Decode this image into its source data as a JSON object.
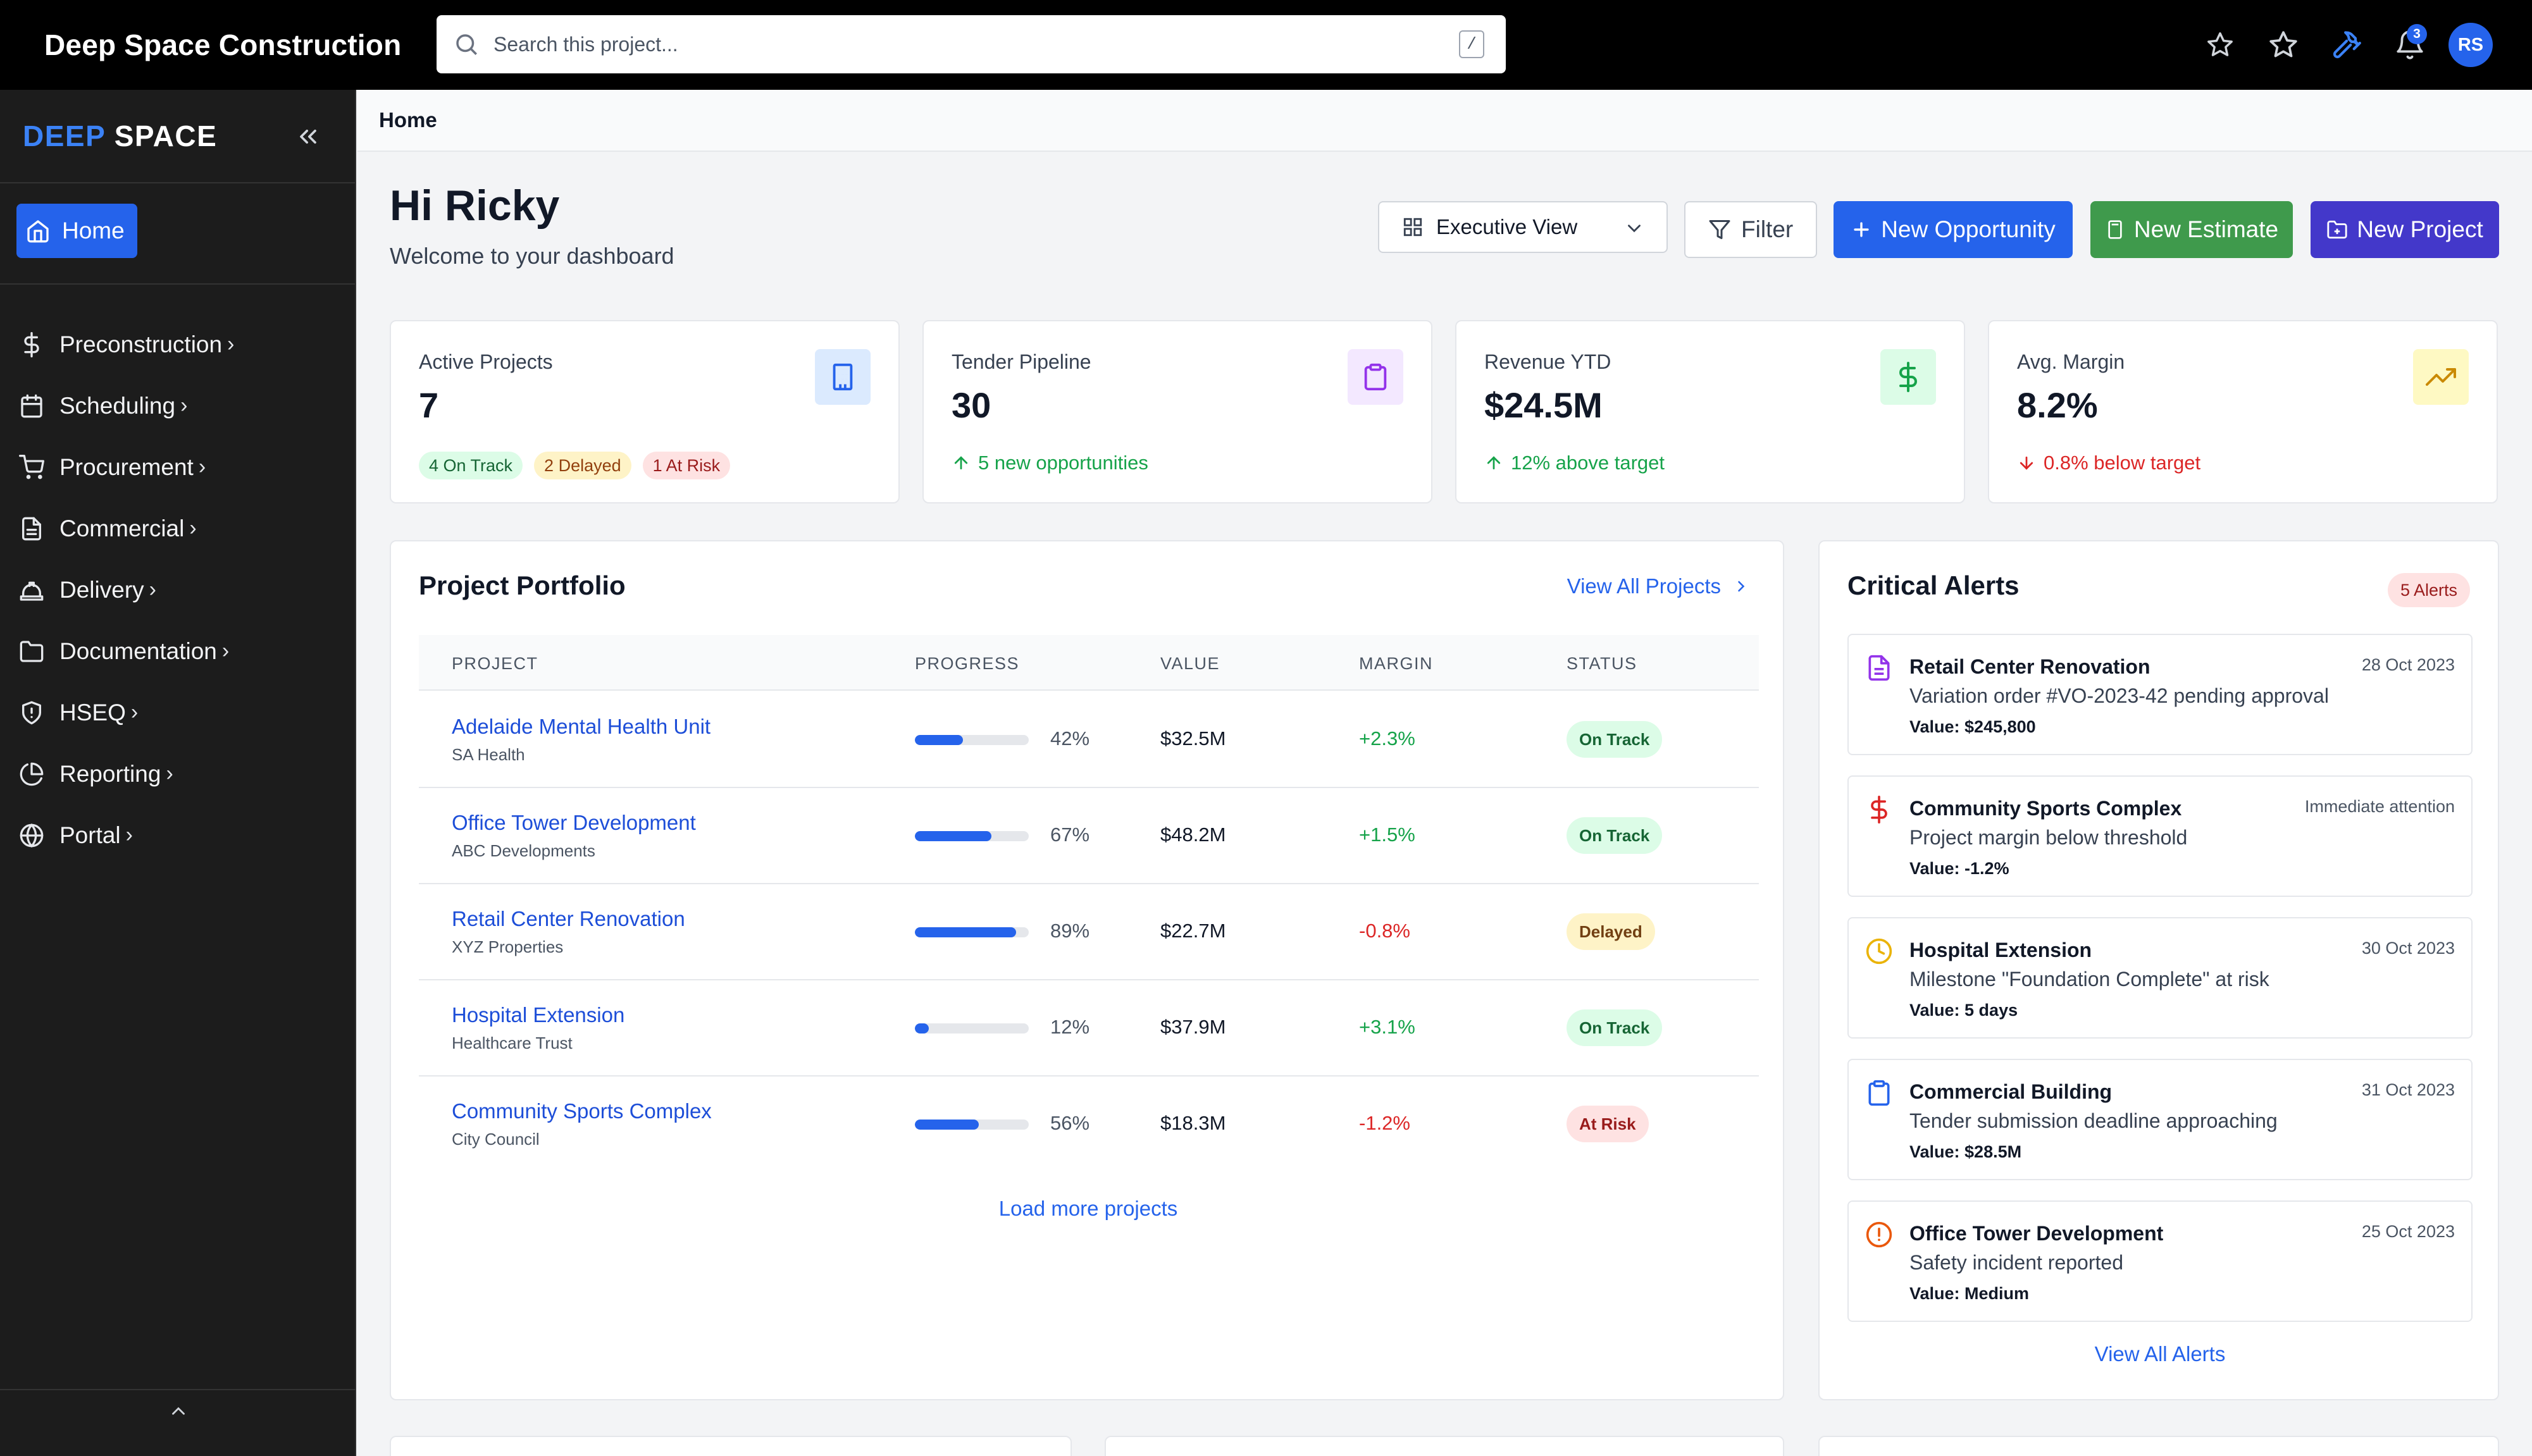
{
  "topbar": {
    "app_title": "Deep Space Construction",
    "search_placeholder": "Search this project...",
    "search_shortcut": "/",
    "notification_count": "3",
    "avatar_initials": "RS"
  },
  "sidebar": {
    "brand_deep": "DEEP",
    "brand_space": "SPACE",
    "home_label": "Home",
    "items": [
      {
        "label": "Preconstruction",
        "icon": "dollar-icon"
      },
      {
        "label": "Scheduling",
        "icon": "calendar-icon"
      },
      {
        "label": "Procurement",
        "icon": "cart-icon"
      },
      {
        "label": "Commercial",
        "icon": "document-icon"
      },
      {
        "label": "Delivery",
        "icon": "hardhat-icon"
      },
      {
        "label": "Documentation",
        "icon": "folder-icon"
      },
      {
        "label": "HSEQ",
        "icon": "shield-icon"
      },
      {
        "label": "Reporting",
        "icon": "pie-chart-icon"
      },
      {
        "label": "Portal",
        "icon": "globe-icon"
      }
    ],
    "chevron": "›"
  },
  "breadcrumb": "Home",
  "header": {
    "greeting": "Hi Ricky",
    "subtitle": "Welcome to your dashboard",
    "view_select": "Executive View",
    "filter_label": "Filter",
    "new_opportunity": "New Opportunity",
    "new_estimate": "New Estimate",
    "new_project": "New Project"
  },
  "stats": [
    {
      "label": "Active Projects",
      "value": "7",
      "chips": [
        "4 On Track",
        "2 Delayed",
        "1 At Risk"
      ]
    },
    {
      "label": "Tender Pipeline",
      "value": "30",
      "foot": "5 new opportunities"
    },
    {
      "label": "Revenue YTD",
      "value": "$24.5M",
      "foot": "12% above target"
    },
    {
      "label": "Avg. Margin",
      "value": "8.2%",
      "foot": "0.8% below target"
    }
  ],
  "portfolio": {
    "title": "Project Portfolio",
    "view_all": "View All Projects",
    "columns": [
      "PROJECT",
      "PROGRESS",
      "VALUE",
      "MARGIN",
      "STATUS"
    ],
    "rows": [
      {
        "name": "Adelaide Mental Health Unit",
        "client": "SA Health",
        "progress": 42,
        "progress_label": "42%",
        "value": "$32.5M",
        "margin": "+2.3%",
        "status": "On Track"
      },
      {
        "name": "Office Tower Development",
        "client": "ABC Developments",
        "progress": 67,
        "progress_label": "67%",
        "value": "$48.2M",
        "margin": "+1.5%",
        "status": "On Track"
      },
      {
        "name": "Retail Center Renovation",
        "client": "XYZ Properties",
        "progress": 89,
        "progress_label": "89%",
        "value": "$22.7M",
        "margin": "-0.8%",
        "status": "Delayed"
      },
      {
        "name": "Hospital Extension",
        "client": "Healthcare Trust",
        "progress": 12,
        "progress_label": "12%",
        "value": "$37.9M",
        "margin": "+3.1%",
        "status": "On Track"
      },
      {
        "name": "Community Sports Complex",
        "client": "City Council",
        "progress": 56,
        "progress_label": "56%",
        "value": "$18.3M",
        "margin": "-1.2%",
        "status": "At Risk"
      }
    ],
    "load_more": "Load more projects"
  },
  "alerts": {
    "title": "Critical Alerts",
    "badge": "5 Alerts",
    "items": [
      {
        "title": "Retail Center Renovation",
        "date": "28 Oct 2023",
        "message": "Variation order #VO-2023-42 pending approval",
        "value": "Value: $245,800",
        "icon": "document-icon"
      },
      {
        "title": "Community Sports Complex",
        "date": "Immediate attention",
        "message": "Project margin below threshold",
        "value": "Value: -1.2%",
        "icon": "dollar-icon"
      },
      {
        "title": "Hospital Extension",
        "date": "30 Oct 2023",
        "message": "Milestone \"Foundation Complete\" at risk",
        "value": "Value: 5 days",
        "icon": "clock-icon"
      },
      {
        "title": "Commercial Building",
        "date": "31 Oct 2023",
        "message": "Tender submission deadline approaching",
        "value": "Value: $28.5M",
        "icon": "clipboard-icon"
      },
      {
        "title": "Office Tower Development",
        "date": "25 Oct 2023",
        "message": "Safety incident reported",
        "value": "Value: Medium",
        "icon": "alert-circle-icon"
      }
    ],
    "view_all": "View All Alerts"
  }
}
